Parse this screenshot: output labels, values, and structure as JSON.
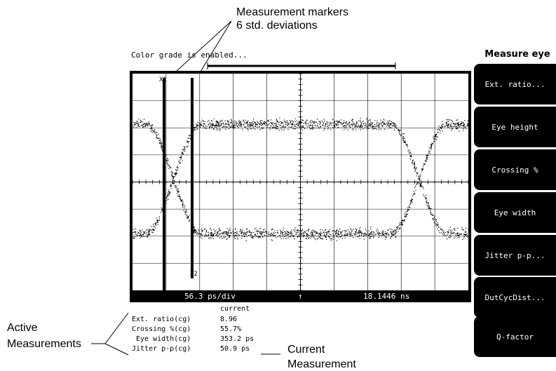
{
  "annotations": {
    "markers_title": "Measurement markers",
    "markers_subtitle": "6 std. deviations",
    "active_line1": "Active",
    "active_line2": "Measurements",
    "current_line1": "Current",
    "current_line2": "Measurement"
  },
  "screen": {
    "status_message": "Color grade is enabled...",
    "marker_x1": "X1",
    "marker_x2": "X2",
    "timebase": "56.3 ps/div",
    "trigger_symbol": "↑",
    "delay": "18.1446 ns"
  },
  "menu": {
    "title": "Measure eye",
    "softkeys": [
      {
        "label": "Ext. ratio..."
      },
      {
        "label": "Eye height"
      },
      {
        "label": "Crossing %"
      },
      {
        "label": "Eye width"
      },
      {
        "label": "Jitter p-p..."
      },
      {
        "label": "DutCycDist..."
      },
      {
        "label": "Q-factor"
      }
    ]
  },
  "measurements": {
    "header": "current",
    "rows": [
      {
        "name": "Ext. ratio(cg)",
        "value": "8.96"
      },
      {
        "name": "Crossing %(cg)",
        "value": "55.7%"
      },
      {
        "name": "Eye width(cg)",
        "value": "353.2 ps"
      },
      {
        "name": "Jitter p-p(cg)",
        "value": "50.9 ps"
      }
    ]
  }
}
